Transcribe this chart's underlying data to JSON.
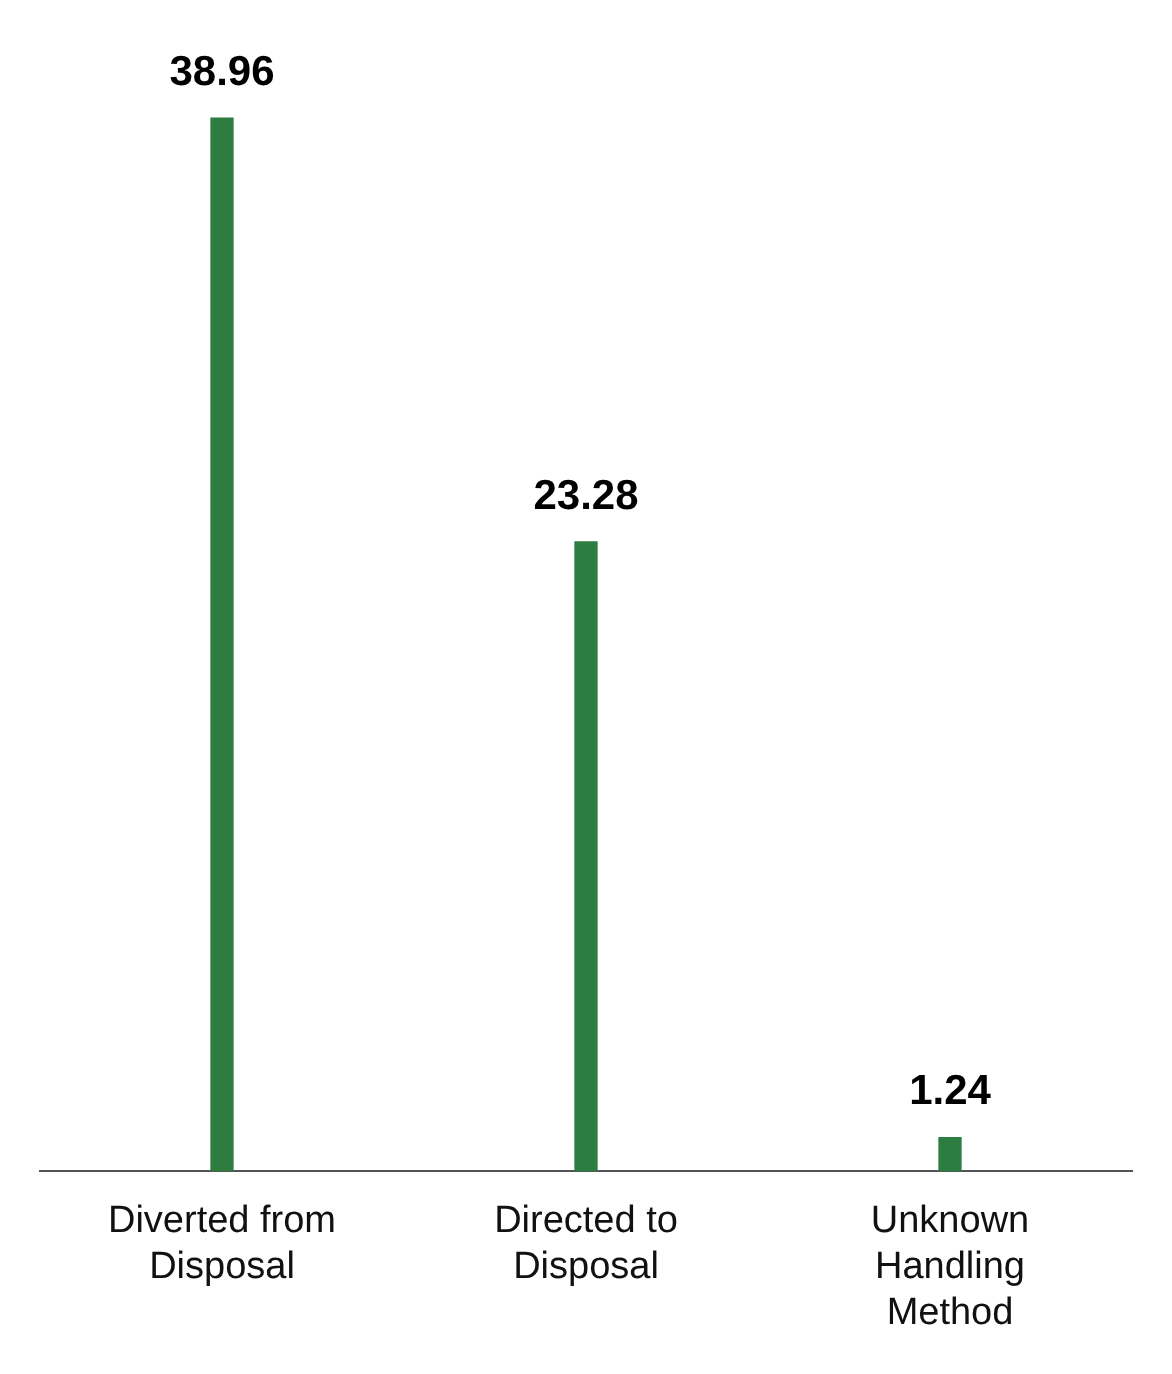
{
  "chart_data": {
    "type": "bar",
    "categories": [
      "Diverted from Disposal",
      "Directed to Disposal",
      "Unknown Handling Method"
    ],
    "values": [
      38.96,
      23.28,
      1.24
    ],
    "color": "#2e7d40",
    "data_labels": true
  }
}
